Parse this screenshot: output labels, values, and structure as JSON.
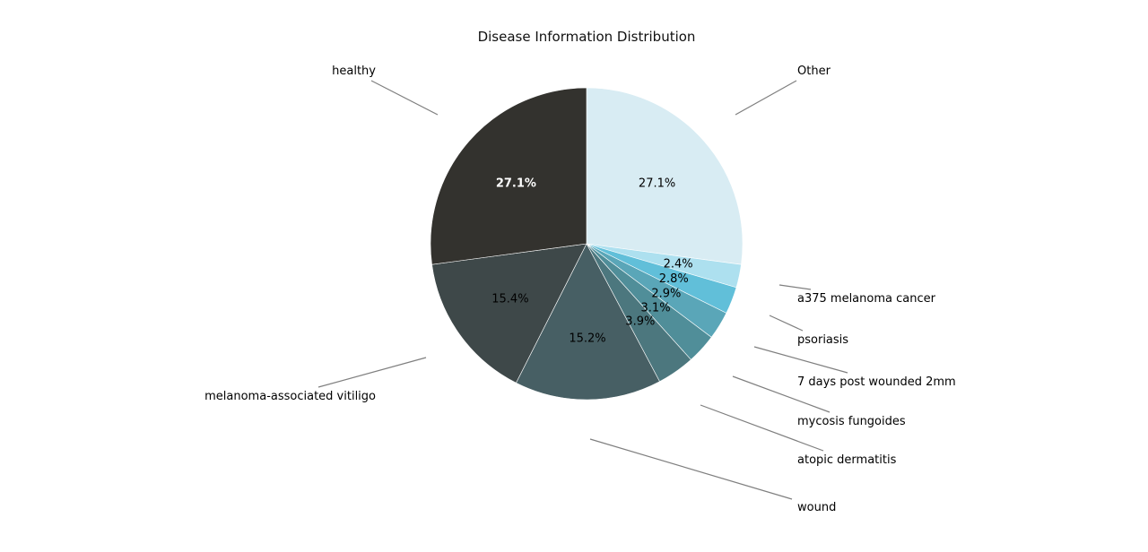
{
  "chart_data": {
    "type": "pie",
    "title": "Disease Information Distribution",
    "slices": [
      {
        "label": "Other",
        "percent": 27.1,
        "display": "27.1%",
        "color": "#d8ecf3",
        "text_color": "#000000",
        "bold": false
      },
      {
        "label": "a375 melanoma cancer",
        "percent": 2.4,
        "display": "2.4%",
        "color": "#ade0ef",
        "text_color": "#000000",
        "bold": false
      },
      {
        "label": "psoriasis",
        "percent": 2.8,
        "display": "2.8%",
        "color": "#61bfd9",
        "text_color": "#000000",
        "bold": false
      },
      {
        "label": "7 days post wounded 2mm",
        "percent": 2.9,
        "display": "2.9%",
        "color": "#5aa6b8",
        "text_color": "#000000",
        "bold": false
      },
      {
        "label": "mycosis fungoides",
        "percent": 3.1,
        "display": "3.1%",
        "color": "#508e99",
        "text_color": "#000000",
        "bold": false
      },
      {
        "label": "atopic dermatitis",
        "percent": 3.9,
        "display": "3.9%",
        "color": "#4c777e",
        "text_color": "#000000",
        "bold": false
      },
      {
        "label": "wound",
        "percent": 15.2,
        "display": "15.2%",
        "color": "#475f64",
        "text_color": "#000000",
        "bold": false
      },
      {
        "label": "melanoma-associated vitiligo",
        "percent": 15.4,
        "display": "15.4%",
        "color": "#3e4849",
        "text_color": "#000000",
        "bold": false
      },
      {
        "label": "healthy",
        "percent": 27.1,
        "display": "27.1%",
        "color": "#33322e",
        "text_color": "#ffffff",
        "bold": true
      }
    ],
    "start": "top",
    "direction": "clockwise",
    "legend": "none"
  }
}
